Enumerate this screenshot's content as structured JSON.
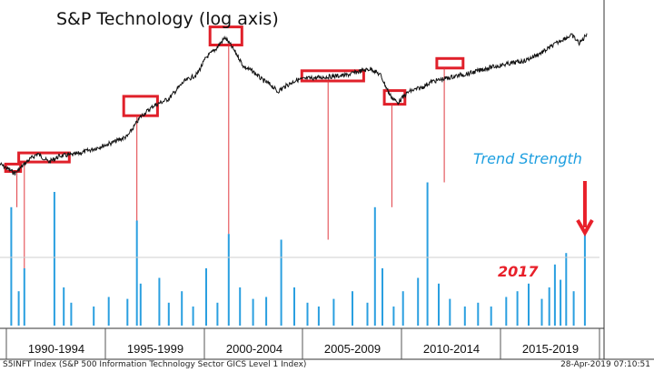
{
  "chart_data": {
    "type": "line",
    "title": "S&P Technology (log axis)",
    "annotations": [
      "Trend Strength",
      "2017"
    ],
    "x_tick_labels": [
      "1990-1994",
      "1995-1999",
      "2000-2004",
      "2005-2009",
      "2010-2014",
      "2015-2019"
    ],
    "y_scale": "log",
    "series": [
      {
        "type": "line",
        "x": [
          1988.0,
          1988.8,
          1989.5,
          1990.0,
          1990.6,
          1991.2,
          1992.0,
          1993.0,
          1994.0,
          1994.8,
          1995.5,
          1996.2,
          1997.0,
          1997.8,
          1998.5,
          1999.0,
          1999.5,
          2000.0,
          2000.3,
          2000.7,
          2001.0,
          2001.5,
          2002.0,
          2002.5,
          2002.8,
          2003.2,
          2003.8,
          2004.5,
          2005.5,
          2006.5,
          2007.0,
          2007.8,
          2008.3,
          2008.8,
          2009.2,
          2009.8,
          2010.5,
          2011.0,
          2011.8,
          2012.5,
          2013.0,
          2014.0,
          2015.0,
          2016.0,
          2017.0,
          2018.0,
          2018.5,
          2018.9,
          2019.1,
          2019.3
        ],
        "values": [
          88,
          72,
          95,
          110,
          92,
          105,
          108,
          122,
          140,
          160,
          245,
          310,
          360,
          520,
          610,
          880,
          1050,
          1350,
          1150,
          900,
          720,
          650,
          540,
          480,
          420,
          470,
          540,
          560,
          580,
          600,
          640,
          690,
          600,
          390,
          330,
          420,
          460,
          520,
          560,
          600,
          620,
          700,
          760,
          820,
          1000,
          1300,
          1420,
          1200,
          1300,
          1480
        ]
      },
      {
        "name": "Trend Strength",
        "type": "bar",
        "x": [
          1988.6,
          1989.0,
          1989.3,
          1990.9,
          1991.4,
          1991.8,
          1993.0,
          1993.8,
          1994.8,
          1995.3,
          1995.5,
          1996.5,
          1997.0,
          1997.7,
          1998.3,
          1999.0,
          1999.6,
          2000.2,
          2000.8,
          2001.5,
          2002.2,
          2003.0,
          2003.7,
          2004.4,
          2005.0,
          2005.8,
          2006.8,
          2007.6,
          2008.0,
          2008.4,
          2009.0,
          2009.5,
          2010.3,
          2010.8,
          2011.4,
          2012.0,
          2012.8,
          2013.5,
          2014.2,
          2015.0,
          2015.6,
          2016.2,
          2016.9,
          2017.3,
          2017.6,
          2017.9,
          2018.2,
          2018.6,
          2019.2
        ],
        "values": [
          62,
          18,
          30,
          70,
          20,
          12,
          10,
          15,
          14,
          55,
          22,
          25,
          12,
          18,
          10,
          30,
          12,
          48,
          20,
          14,
          15,
          45,
          20,
          12,
          10,
          14,
          18,
          12,
          62,
          30,
          10,
          18,
          25,
          75,
          22,
          14,
          10,
          12,
          10,
          15,
          18,
          22,
          14,
          20,
          32,
          24,
          38,
          18,
          48
        ]
      }
    ],
    "highlight_boxes": [
      {
        "x_range": [
          1988.3,
          1989.1
        ],
        "y_range": [
          75,
          88
        ]
      },
      {
        "x_range": [
          1989.0,
          1991.7
        ],
        "y_range": [
          92,
          112
        ]
      },
      {
        "x_range": [
          1994.6,
          1996.4
        ],
        "y_range": [
          250,
          380
        ]
      },
      {
        "x_range": [
          1999.2,
          2000.9
        ],
        "y_range": [
          1150,
          1700
        ]
      },
      {
        "x_range": [
          2004.1,
          2007.4
        ],
        "y_range": [
          530,
          660
        ]
      },
      {
        "x_range": [
          2008.5,
          2009.6
        ],
        "y_range": [
          320,
          430
        ]
      },
      {
        "x_range": [
          2011.3,
          2012.7
        ],
        "y_range": [
          700,
          860
        ]
      }
    ],
    "reference_lines": [
      {
        "x": 1988.9,
        "from_value": 75,
        "to_bar": 62
      },
      {
        "x": 1989.3,
        "from_value": 92,
        "to_bar": 30
      },
      {
        "x": 1995.3,
        "from_value": 250,
        "to_bar": 55
      },
      {
        "x": 2000.2,
        "from_value": 1150,
        "to_bar": 48
      },
      {
        "x": 2005.5,
        "from_value": 530,
        "to_bar": 45
      },
      {
        "x": 2008.9,
        "from_value": 320,
        "to_bar": 62
      },
      {
        "x": 2011.7,
        "from_value": 700,
        "to_bar": 75
      }
    ],
    "colors": {
      "price": "#111111",
      "bars": "#2a9fe0",
      "boxes": "#e0202a",
      "lines": "#e03a40",
      "annotation_blue": "#1e9fe0",
      "annotation_red": "#e8202a"
    },
    "grid": false
  },
  "footer": {
    "left": "S5INFT Index (S&P 500 Information Technology Sector GICS Level 1 Index)",
    "right": "28-Apr-2019 07:10:51"
  }
}
